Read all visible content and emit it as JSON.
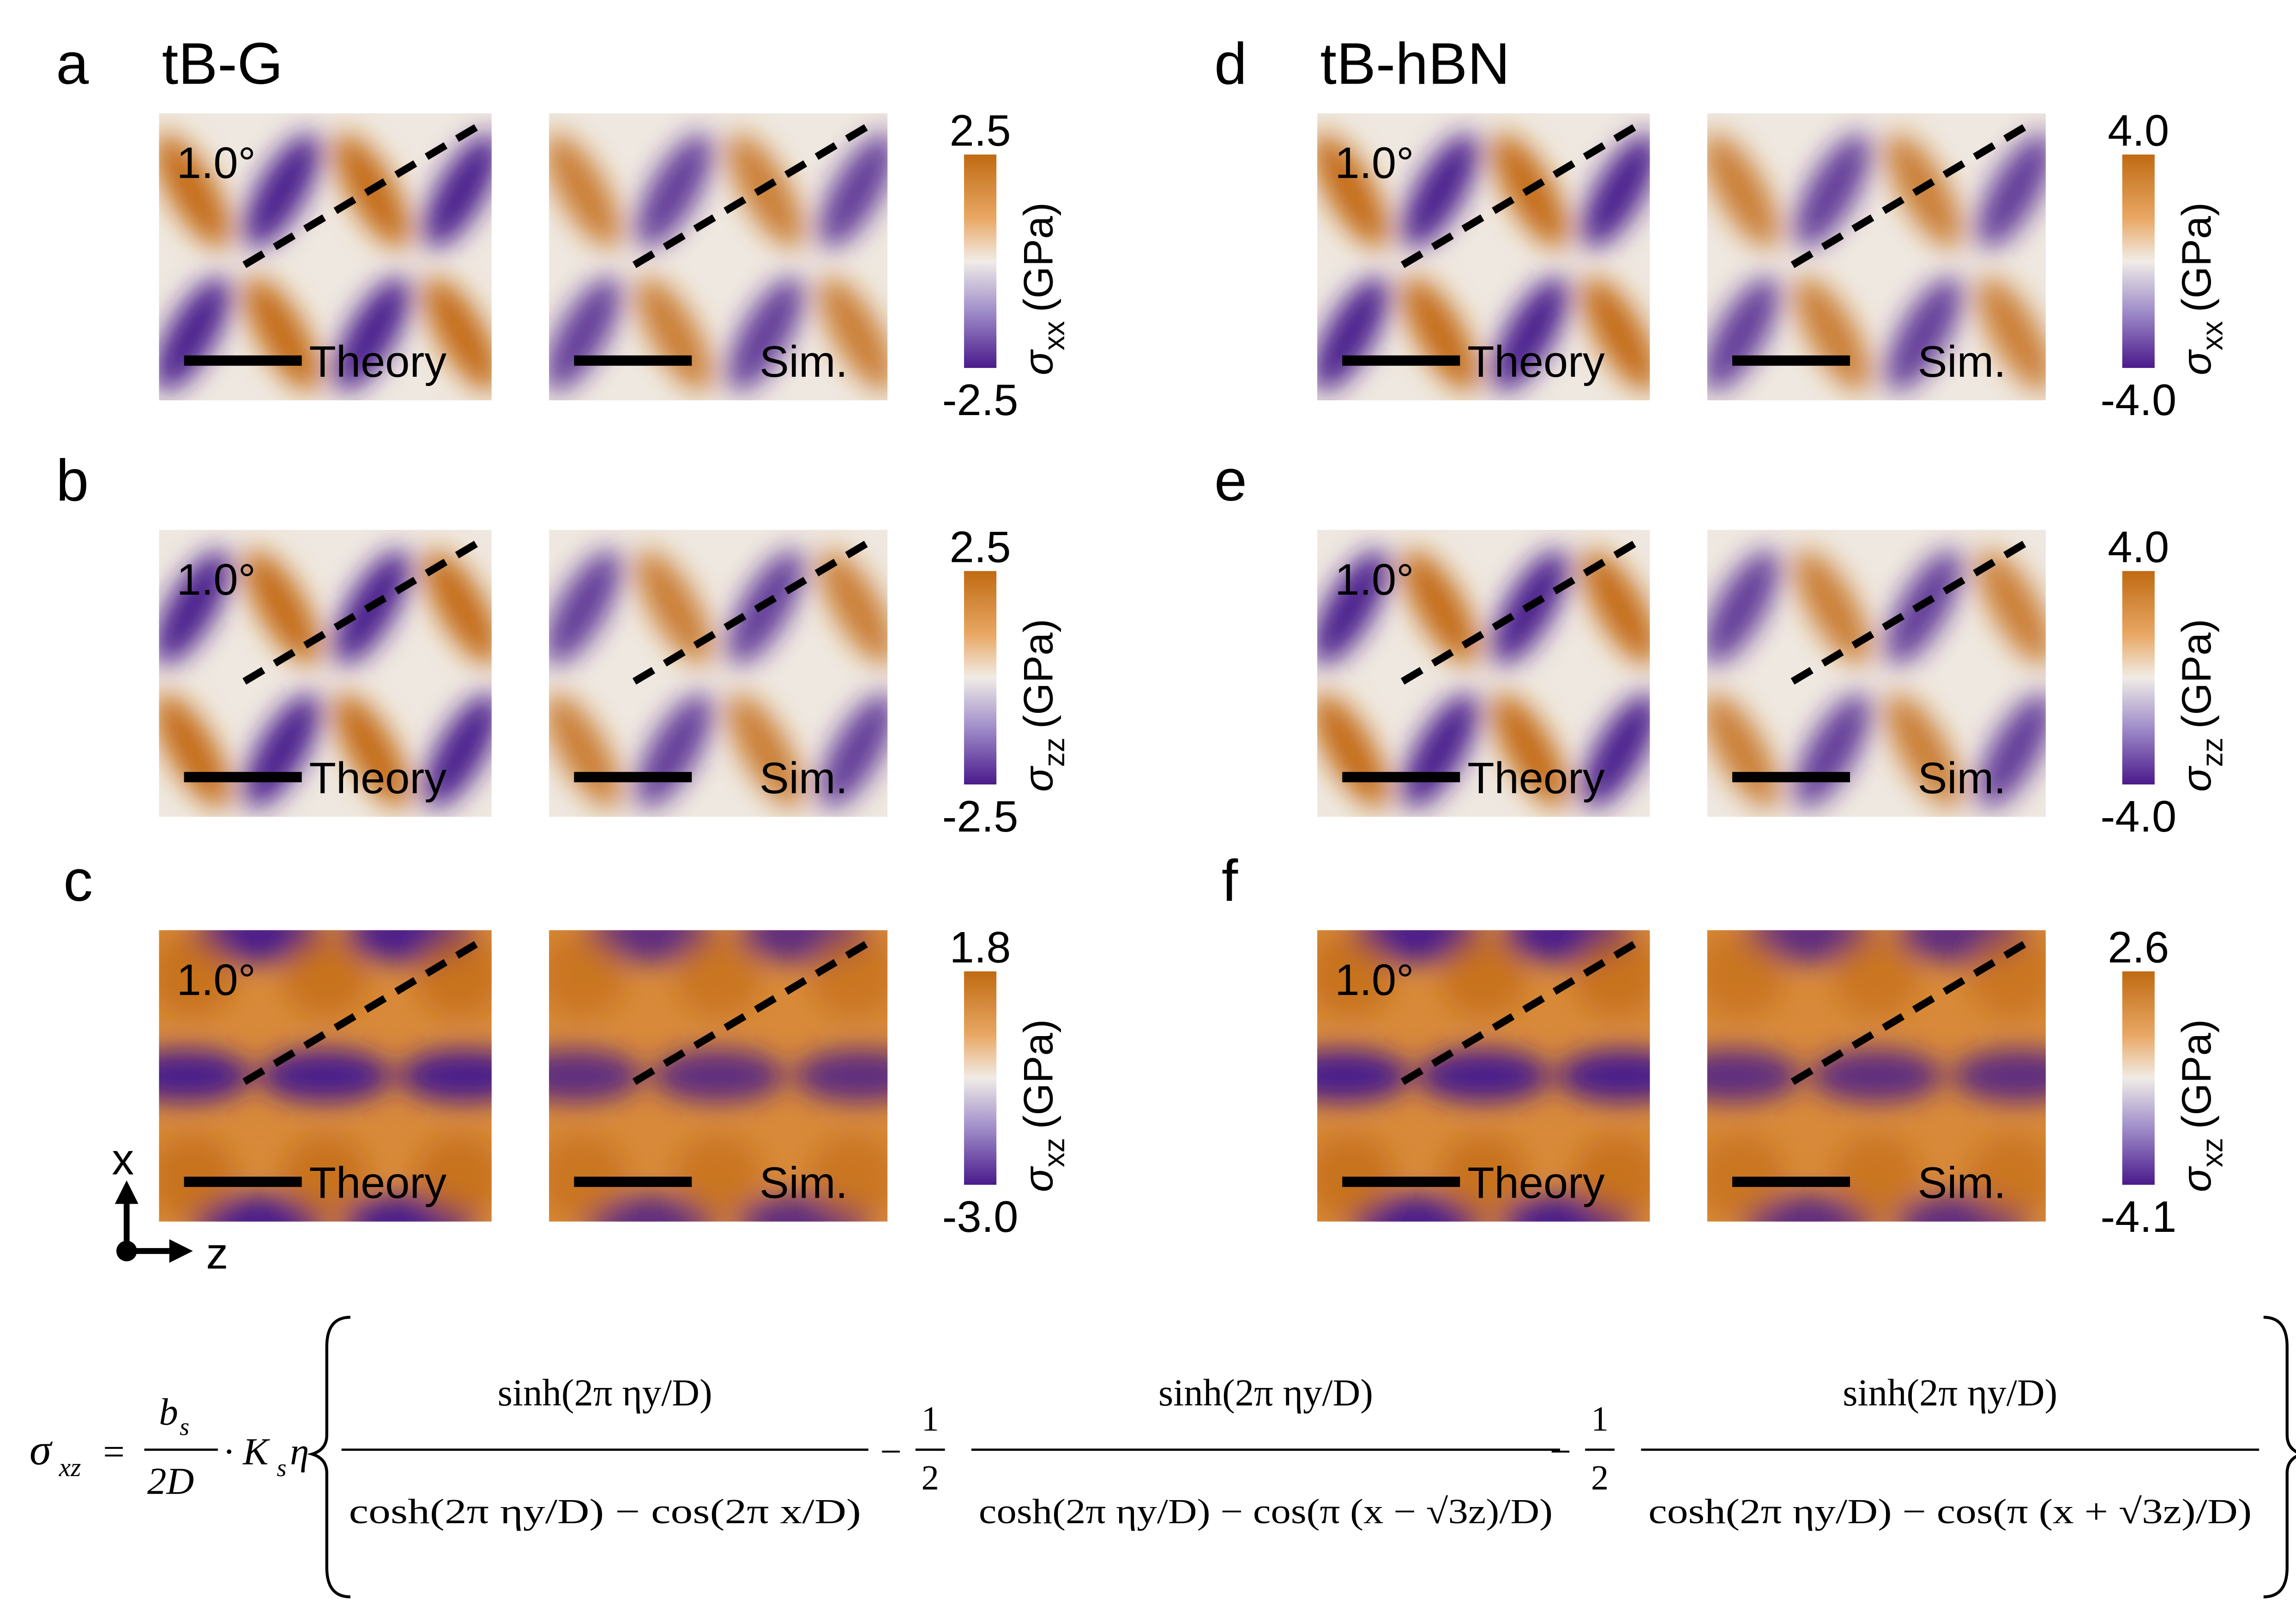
{
  "panels": [
    {
      "letter": "a",
      "title": "tB-G",
      "angle": "1.0°",
      "theory_label": "Theory",
      "sim_label": "Sim.",
      "colorbar": {
        "max": "2.5",
        "min": "-2.5",
        "symbol": "σ",
        "sub": "xx",
        "unit": "(GPa)"
      }
    },
    {
      "letter": "b",
      "angle": "1.0°",
      "theory_label": "Theory",
      "sim_label": "Sim.",
      "colorbar": {
        "max": "2.5",
        "min": "-2.5",
        "symbol": "σ",
        "sub": "zz",
        "unit": "(GPa)"
      }
    },
    {
      "letter": "c",
      "angle": "1.0°",
      "theory_label": "Theory",
      "sim_label": "Sim.",
      "colorbar": {
        "max": "1.8",
        "min": "-3.0",
        "symbol": "σ",
        "sub": "xz",
        "unit": "(GPa)"
      }
    },
    {
      "letter": "d",
      "title": "tB-hBN",
      "angle": "1.0°",
      "theory_label": "Theory",
      "sim_label": "Sim.",
      "colorbar": {
        "max": "4.0",
        "min": "-4.0",
        "symbol": "σ",
        "sub": "xx",
        "unit": "(GPa)"
      }
    },
    {
      "letter": "e",
      "angle": "1.0°",
      "theory_label": "Theory",
      "sim_label": "Sim.",
      "colorbar": {
        "max": "4.0",
        "min": "-4.0",
        "symbol": "σ",
        "sub": "zz",
        "unit": "(GPa)"
      }
    },
    {
      "letter": "f",
      "angle": "1.0°",
      "theory_label": "Theory",
      "sim_label": "Sim.",
      "colorbar": {
        "max": "2.6",
        "min": "-4.1",
        "symbol": "σ",
        "sub": "xz",
        "unit": "(GPa)"
      }
    }
  ],
  "axes": {
    "x": "x",
    "z": "z"
  },
  "equation": {
    "lhs": "σ",
    "lhs_sub": "xz",
    "equals": "=",
    "pre_num": "b",
    "pre_num_sub": "s",
    "pre_den": "2D",
    "mult": "· K",
    "mult_sub": "s",
    "eta": "η",
    "terms": [
      {
        "numerator": "sinh(2π ηy/D)",
        "denominator": "cosh(2π ηy/D) − cos(2π x/D)"
      },
      {
        "sign": "−",
        "coef_num": "1",
        "coef_den": "2",
        "numerator": "sinh(2π ηy/D)",
        "denominator": "cosh(2π ηy/D) − cos(π (x − √3z)/D)"
      },
      {
        "sign": "−",
        "coef_num": "1",
        "coef_den": "2",
        "numerator": "sinh(2π ηy/D)",
        "denominator": "cosh(2π ηy/D) − cos(π (x + √3z)/D)"
      }
    ]
  }
}
